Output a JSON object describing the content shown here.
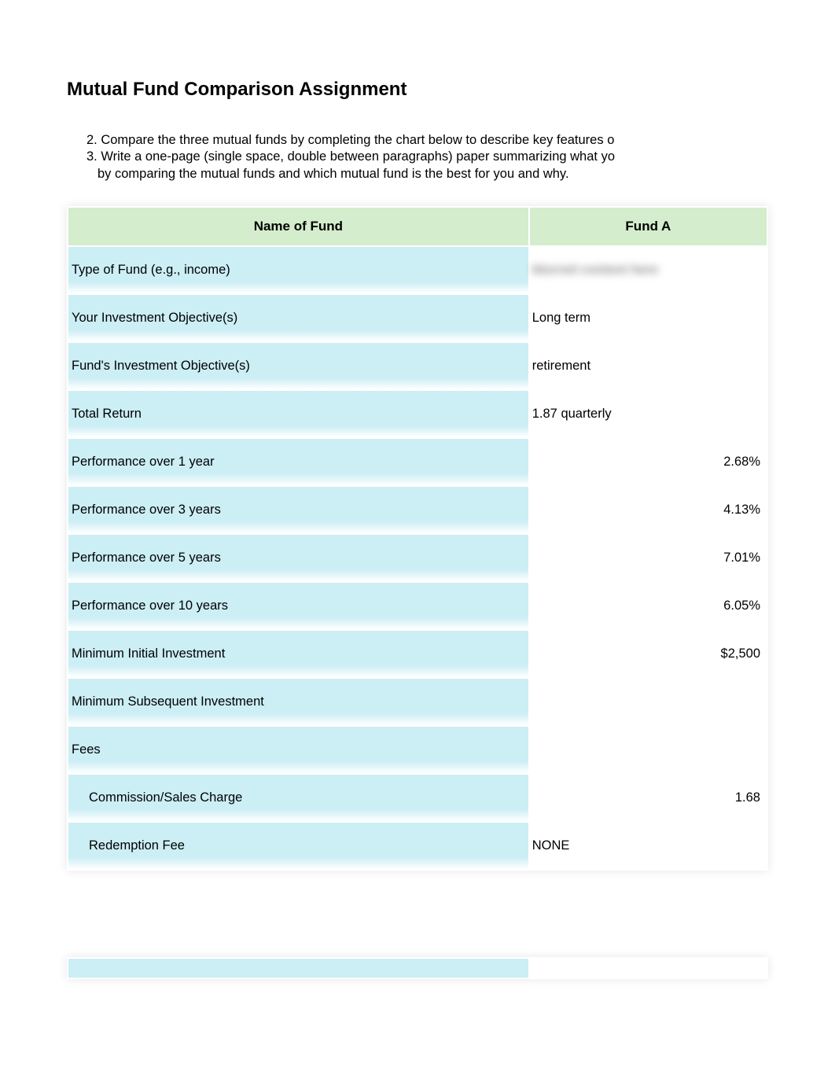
{
  "title": "Mutual Fund Comparison Assignment",
  "instructions": {
    "item2": "2. Compare the three mutual funds by completing the chart below to describe key features o",
    "item3": "3. Write a one-page (single space, double between paragraphs) paper summarizing what yo",
    "item3_cont": "by comparing the mutual funds and which mutual fund is the best for you and why."
  },
  "table": {
    "headers": {
      "name": "Name of Fund",
      "fund_a": "Fund A"
    },
    "rows": [
      {
        "label": "Type of Fund (e.g., income)",
        "value": "blurred content here",
        "align": "left",
        "blurred": true
      },
      {
        "label": "Your Investment Objective(s)",
        "value": "Long term",
        "align": "left",
        "blurred": false
      },
      {
        "label": "Fund's Investment Objective(s)",
        "value": "retirement",
        "align": "left",
        "blurred": false
      },
      {
        "label": "Total Return",
        "value": "1.87 quarterly",
        "align": "left",
        "blurred": false
      },
      {
        "label": "Performance over 1 year",
        "value": "2.68%",
        "align": "right",
        "blurred": false
      },
      {
        "label": "Performance over 3 years",
        "value": "4.13%",
        "align": "right",
        "blurred": false
      },
      {
        "label": "Performance over 5 years",
        "value": "7.01%",
        "align": "right",
        "blurred": false
      },
      {
        "label": "Performance over 10 years",
        "value": "6.05%",
        "align": "right",
        "blurred": false
      },
      {
        "label": "Minimum Initial Investment",
        "value": "$2,500",
        "align": "right",
        "blurred": false
      },
      {
        "label": "Minimum Subsequent Investment",
        "value": "",
        "align": "left",
        "blurred": false
      },
      {
        "label": "Fees",
        "value": "",
        "align": "left",
        "blurred": false
      },
      {
        "label": "Commission/Sales Charge",
        "value": "1.68",
        "align": "right",
        "blurred": false,
        "indent": true
      },
      {
        "label": "Redemption Fee",
        "value": "NONE",
        "align": "left",
        "blurred": false,
        "indent": true
      }
    ]
  },
  "colors": {
    "header_bg": "#d4edcc",
    "row_bg": "#cceef5",
    "background": "#ffffff",
    "text": "#000000"
  },
  "typography": {
    "title_size": 24,
    "body_size": 16.5
  }
}
